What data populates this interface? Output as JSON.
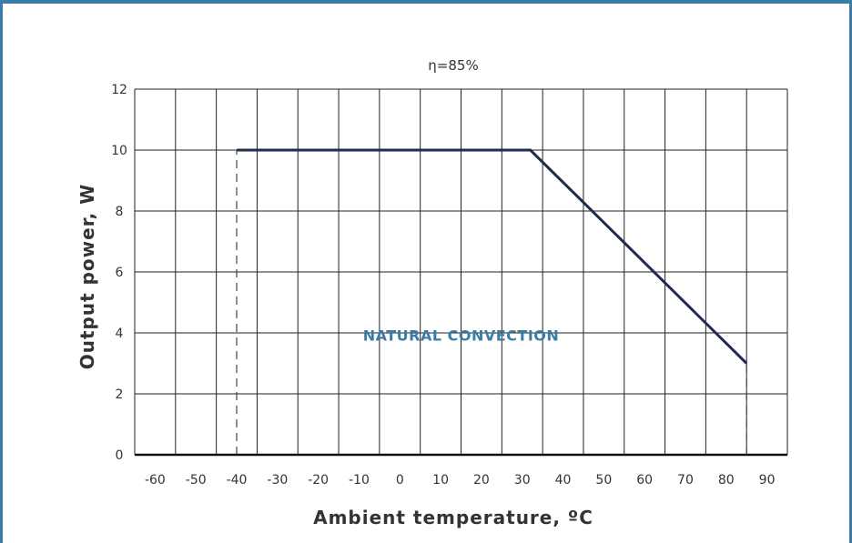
{
  "chart_data": {
    "type": "line",
    "title": "η=85%",
    "xlabel": "Ambient temperature, ºC",
    "ylabel": "Output power, W",
    "xlim": [
      -65,
      95
    ],
    "ylim": [
      0,
      12
    ],
    "x_ticks": [
      -60,
      -50,
      -40,
      -30,
      -20,
      -10,
      0,
      10,
      20,
      30,
      40,
      50,
      60,
      70,
      80,
      90
    ],
    "y_ticks": [
      0,
      2,
      4,
      6,
      8,
      10,
      12
    ],
    "grid": true,
    "series": [
      {
        "name": "",
        "x": [
          -40,
          32,
          85
        ],
        "y": [
          10,
          10,
          3
        ],
        "color": "#1f2d4d"
      }
    ],
    "dashed_lines": [
      {
        "x": -40,
        "y": [
          0,
          10
        ]
      },
      {
        "x": 85,
        "y": [
          0,
          3
        ]
      }
    ],
    "annotation": {
      "text": "NATURAL CONVECTION",
      "x": 15,
      "y": 5,
      "color": "#3a7ca5"
    }
  }
}
